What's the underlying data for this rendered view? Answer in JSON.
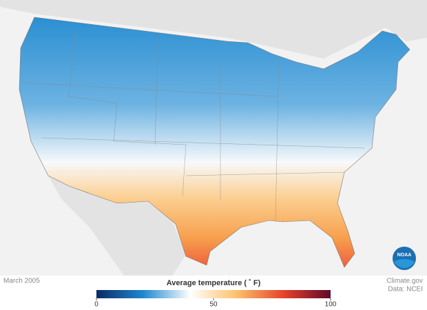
{
  "caption": {
    "date": "March 2005",
    "credit": "Climate.gov",
    "source": "Data: NCEI"
  },
  "logo": {
    "text": "NOAA"
  },
  "legend": {
    "title": "Average temperature ( ˚ F)",
    "range": [
      0,
      100
    ],
    "ticks": [
      0,
      50,
      100
    ],
    "colors": [
      "#0b2a63",
      "#1e88cf",
      "#ffffff",
      "#fcc16a",
      "#e5432d",
      "#5e0a2a"
    ]
  }
}
